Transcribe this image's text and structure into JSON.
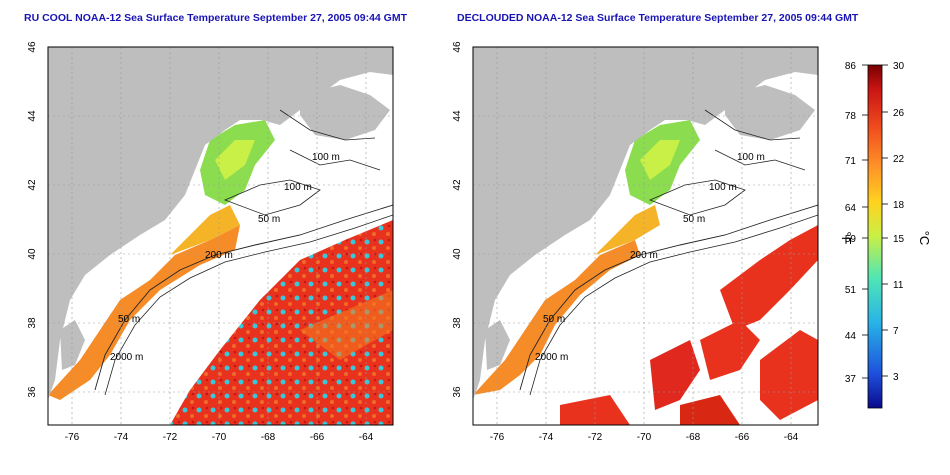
{
  "panels": [
    {
      "title": "RU COOL NOAA-12 Sea Surface Temperature September 27, 2005 09:44 GMT"
    },
    {
      "title": "DECLOUDED NOAA-12 Sea Surface Temperature September 27, 2005 09:44 GMT"
    }
  ],
  "map": {
    "lon_ticks": [
      "-76",
      "-74",
      "-72",
      "-70",
      "-68",
      "-66",
      "-64"
    ],
    "lat_ticks": [
      "46",
      "44",
      "42",
      "40",
      "38",
      "36"
    ],
    "contours": [
      "100 m",
      "100 m",
      "50 m",
      "200 m",
      "50 m",
      "2000 m"
    ]
  },
  "colorbar": {
    "f_ticks": [
      "86",
      "78",
      "71",
      "64",
      "59",
      "51",
      "44",
      "37"
    ],
    "c_ticks": [
      "30",
      "26",
      "22",
      "18",
      "15",
      "11",
      "7",
      "3"
    ],
    "f_unit": "°F",
    "c_unit": "°C",
    "colors": [
      "#0a0a8c",
      "#1e50dc",
      "#28b4e6",
      "#50e6b4",
      "#c8f046",
      "#ffd21e",
      "#ff9628",
      "#f04b1e",
      "#c81414",
      "#780000"
    ]
  },
  "colors": {
    "land": "#bebebe",
    "title": "#1a14b4",
    "warm_sst": "#e8321e",
    "shelf_sst": "#f58c28",
    "cool_sst": "#8cdc50"
  }
}
